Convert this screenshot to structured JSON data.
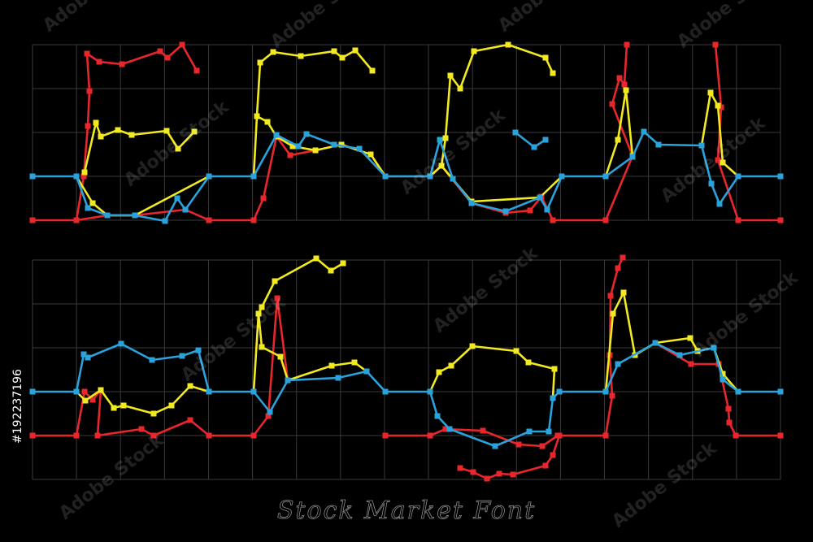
{
  "caption": "Stock Market Font",
  "stock_id": "#192237196",
  "watermark": "Adobe Stock"
}
